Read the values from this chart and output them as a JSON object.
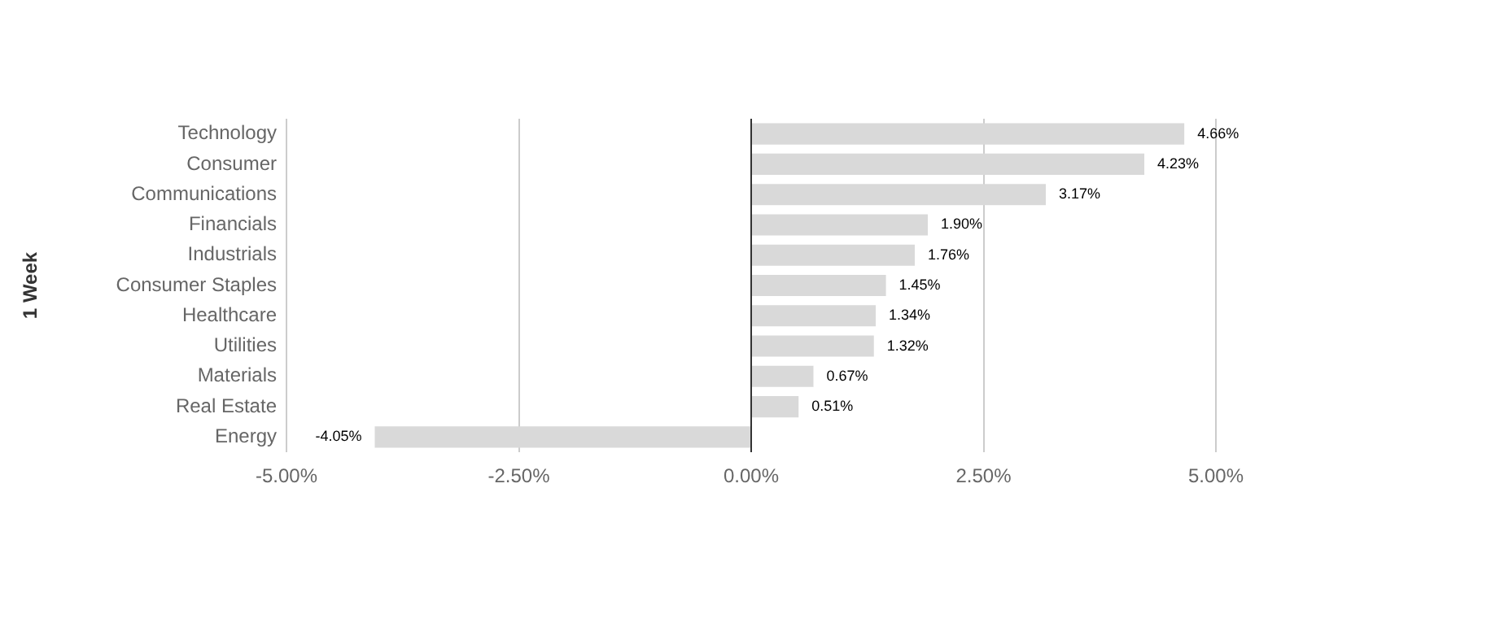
{
  "chart_data": {
    "type": "bar",
    "orientation": "horizontal",
    "ylabel": "1 Week",
    "categories": [
      "Technology",
      "Consumer",
      "Communications",
      "Financials",
      "Industrials",
      "Consumer Staples",
      "Healthcare",
      "Utilities",
      "Materials",
      "Real Estate",
      "Energy"
    ],
    "values": [
      4.66,
      4.23,
      3.17,
      1.9,
      1.76,
      1.45,
      1.34,
      1.32,
      0.67,
      0.51,
      -4.05
    ],
    "value_labels": [
      "4.66%",
      "4.23%",
      "3.17%",
      "1.90%",
      "1.76%",
      "1.45%",
      "1.34%",
      "1.32%",
      "0.67%",
      "0.51%",
      "-4.05%"
    ],
    "color": "#d9d9d9",
    "xlim": [
      -5,
      5
    ],
    "xticks": [
      {
        "value": -5,
        "label": "-5.00%"
      },
      {
        "value": -2.5,
        "label": "-2.50%"
      },
      {
        "value": 0,
        "label": "0.00%"
      },
      {
        "value": 2.5,
        "label": "2.50%"
      },
      {
        "value": 5,
        "label": "5.00%"
      }
    ],
    "grid": "x",
    "legend": false
  }
}
